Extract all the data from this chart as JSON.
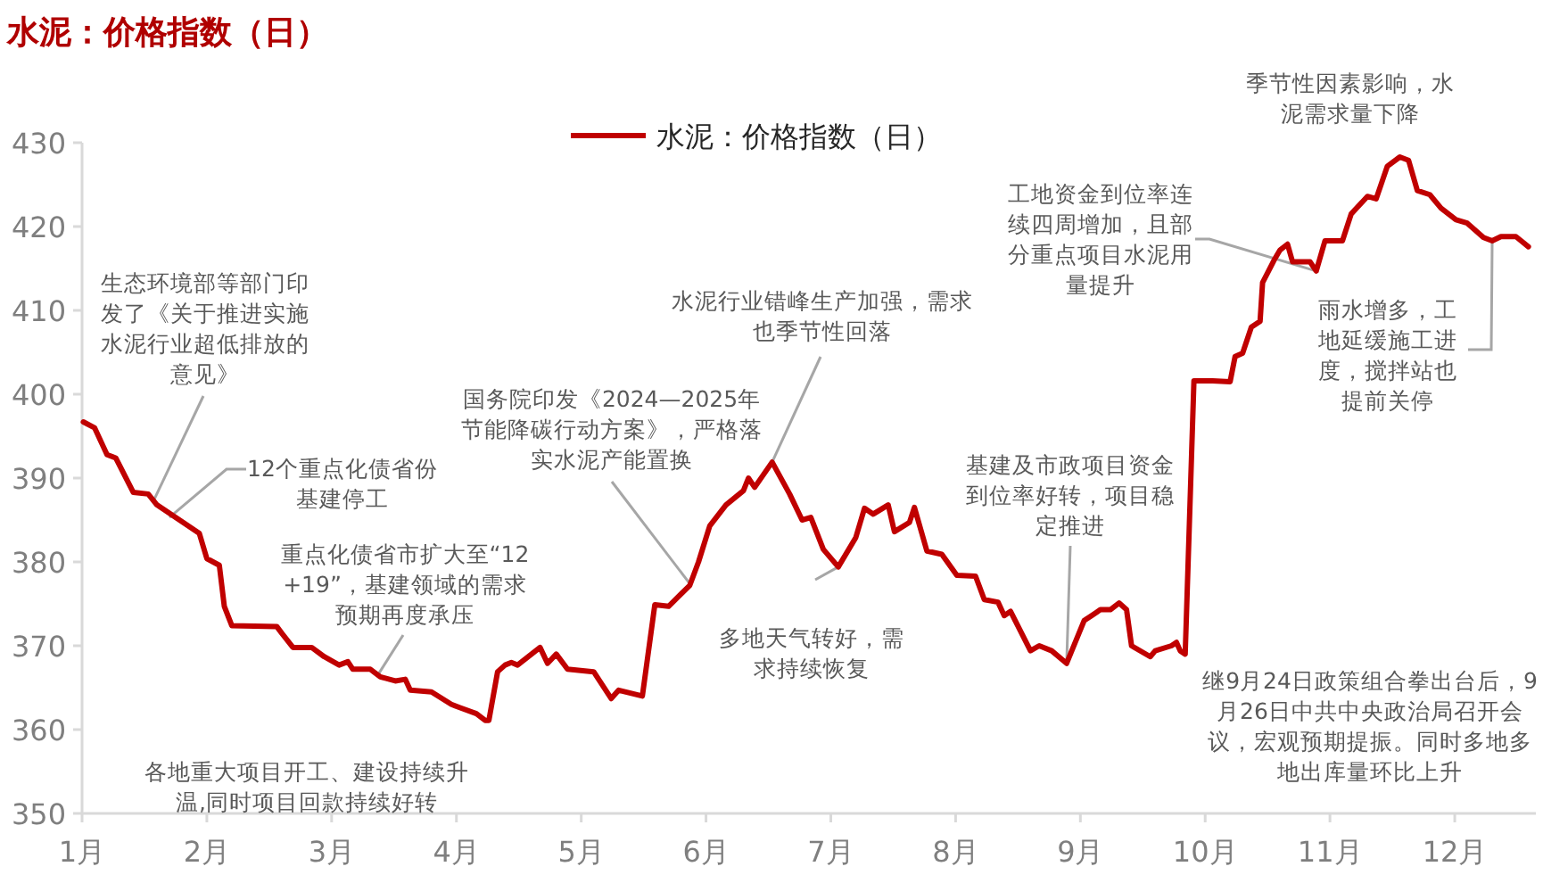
{
  "chart_data": {
    "type": "line",
    "title": "水泥：价格指数（日）",
    "x": [
      1.01,
      1.1,
      1.2,
      1.27,
      1.41,
      1.53,
      1.6,
      1.81,
      1.94,
      2.0,
      2.1,
      2.14,
      2.2,
      2.56,
      2.6,
      2.69,
      2.84,
      2.94,
      3.06,
      3.13,
      3.17,
      3.31,
      3.39,
      3.51,
      3.59,
      3.63,
      3.8,
      3.96,
      4.03,
      4.16,
      4.23,
      4.26,
      4.33,
      4.39,
      4.44,
      4.49,
      4.67,
      4.73,
      4.8,
      4.89,
      5.1,
      5.24,
      5.3,
      5.49,
      5.59,
      5.7,
      5.87,
      5.94,
      6.03,
      6.16,
      6.3,
      6.34,
      6.39,
      6.53,
      6.67,
      6.77,
      6.84,
      6.94,
      7.06,
      7.2,
      7.27,
      7.34,
      7.46,
      7.51,
      7.63,
      7.67,
      7.77,
      7.89,
      8.01,
      8.16,
      8.23,
      8.34,
      8.39,
      8.44,
      8.6,
      8.67,
      8.77,
      8.89,
      9.03,
      9.09,
      9.13,
      9.16,
      9.24,
      9.31,
      9.37,
      9.41,
      9.56,
      9.6,
      9.73,
      9.77,
      9.8,
      9.84,
      9.91,
      10.06,
      10.2,
      10.24,
      10.3,
      10.37,
      10.44,
      10.46,
      10.56,
      10.6,
      10.66,
      10.7,
      10.84,
      10.89,
      10.96,
      11.1,
      11.17,
      11.3,
      11.37,
      11.46,
      11.56,
      11.63,
      11.7,
      11.8,
      11.89,
      12.01,
      12.1,
      12.23,
      12.3,
      12.37,
      12.49,
      12.59
    ],
    "series": [
      {
        "name": "水泥：价格指数（日）",
        "color": "#c00000",
        "values": [
          396.7,
          396.0,
          392.8,
          392.4,
          388.3,
          388.1,
          386.8,
          384.7,
          383.4,
          380.4,
          379.6,
          374.7,
          372.4,
          372.3,
          371.5,
          369.8,
          369.8,
          368.7,
          367.7,
          368.1,
          367.2,
          367.2,
          366.3,
          365.8,
          366.0,
          364.7,
          364.5,
          363.0,
          362.6,
          361.9,
          361.1,
          361.1,
          366.9,
          367.7,
          368.0,
          367.7,
          369.8,
          367.9,
          369.0,
          367.2,
          366.9,
          363.7,
          364.7,
          364.0,
          374.9,
          374.7,
          377.2,
          380.0,
          384.3,
          386.8,
          388.5,
          390.0,
          388.9,
          391.9,
          388.1,
          385.0,
          385.3,
          381.5,
          379.4,
          382.9,
          386.4,
          385.7,
          386.8,
          383.6,
          384.7,
          386.5,
          381.3,
          380.9,
          378.4,
          378.3,
          375.5,
          375.2,
          373.6,
          374.1,
          369.4,
          370.0,
          369.4,
          367.9,
          373.0,
          373.6,
          374.0,
          374.3,
          374.3,
          375.1,
          374.3,
          370.0,
          368.7,
          369.4,
          370.0,
          370.4,
          369.4,
          369.0,
          401.6,
          401.6,
          401.5,
          404.5,
          404.9,
          408.0,
          408.7,
          413.3,
          416.2,
          417.2,
          417.9,
          415.8,
          415.8,
          414.7,
          418.3,
          418.3,
          421.5,
          423.6,
          423.3,
          427.2,
          428.3,
          427.9,
          424.3,
          423.8,
          422.2,
          420.8,
          420.4,
          418.7,
          418.3,
          418.8,
          418.8,
          417.6
        ]
      }
    ],
    "xlim": [
      1,
      12.65
    ],
    "ylim": [
      350,
      430
    ],
    "xticks": [
      {
        "value": 1,
        "label": "1月"
      },
      {
        "value": 2,
        "label": "2月"
      },
      {
        "value": 3,
        "label": "3月"
      },
      {
        "value": 4,
        "label": "4月"
      },
      {
        "value": 5,
        "label": "5月"
      },
      {
        "value": 6,
        "label": "6月"
      },
      {
        "value": 7,
        "label": "7月"
      },
      {
        "value": 8,
        "label": "8月"
      },
      {
        "value": 9,
        "label": "9月"
      },
      {
        "value": 10,
        "label": "10月"
      },
      {
        "value": 11,
        "label": "11月"
      },
      {
        "value": 12,
        "label": "12月"
      }
    ],
    "yticks": [
      350,
      360,
      370,
      380,
      390,
      400,
      410,
      420,
      430
    ],
    "legend": "top",
    "annotations": [
      {
        "text": "生态环境部等部门印发了《关于推进实施水泥行业超低排放的意见》",
        "x": 1.57,
        "y": 387.2
      },
      {
        "text": "12个重点化债省份基建停工",
        "x": 1.7,
        "y": 385.3
      },
      {
        "text": "重点化债省市扩大至“12+19”，基建领域的需求预期再度承压",
        "x": 3.37,
        "y": 366.5
      },
      "各地重大项目开工、建设持续升温,同时项目回款持续好转",
      {
        "text": "国务院印发《2024—2025年节能降碳行动方案》，严格落实水泥产能置换",
        "x": 5.87,
        "y": 377.4
      },
      {
        "text": "水泥行业错峰生产加强，需求也季节性回落",
        "x": 6.53,
        "y": 391.9
      },
      {
        "text": "多地天气转好，需求持续恢复",
        "x": 7.06,
        "y": 379.4
      },
      {
        "text": "基建及市政项目资金到位率好转，项目稳定推进",
        "x": 8.89,
        "y": 368.0
      },
      {
        "text": "工地资金到位率连续四周增加，且部分重点项目水泥用量提升",
        "x": 10.89,
        "y": 414.7
      },
      "季节性因素影响，水泥需求量下降",
      {
        "text": "雨水增多，工地延缓施工进度，搅拌站也提前关停",
        "x": 12.3,
        "y": 418.3
      },
      "继9月24日政策组合拳出台后，9月26日中共中央政治局召开会议，宏观预期提振。同时多地多地出库量环比上升"
    ]
  }
}
